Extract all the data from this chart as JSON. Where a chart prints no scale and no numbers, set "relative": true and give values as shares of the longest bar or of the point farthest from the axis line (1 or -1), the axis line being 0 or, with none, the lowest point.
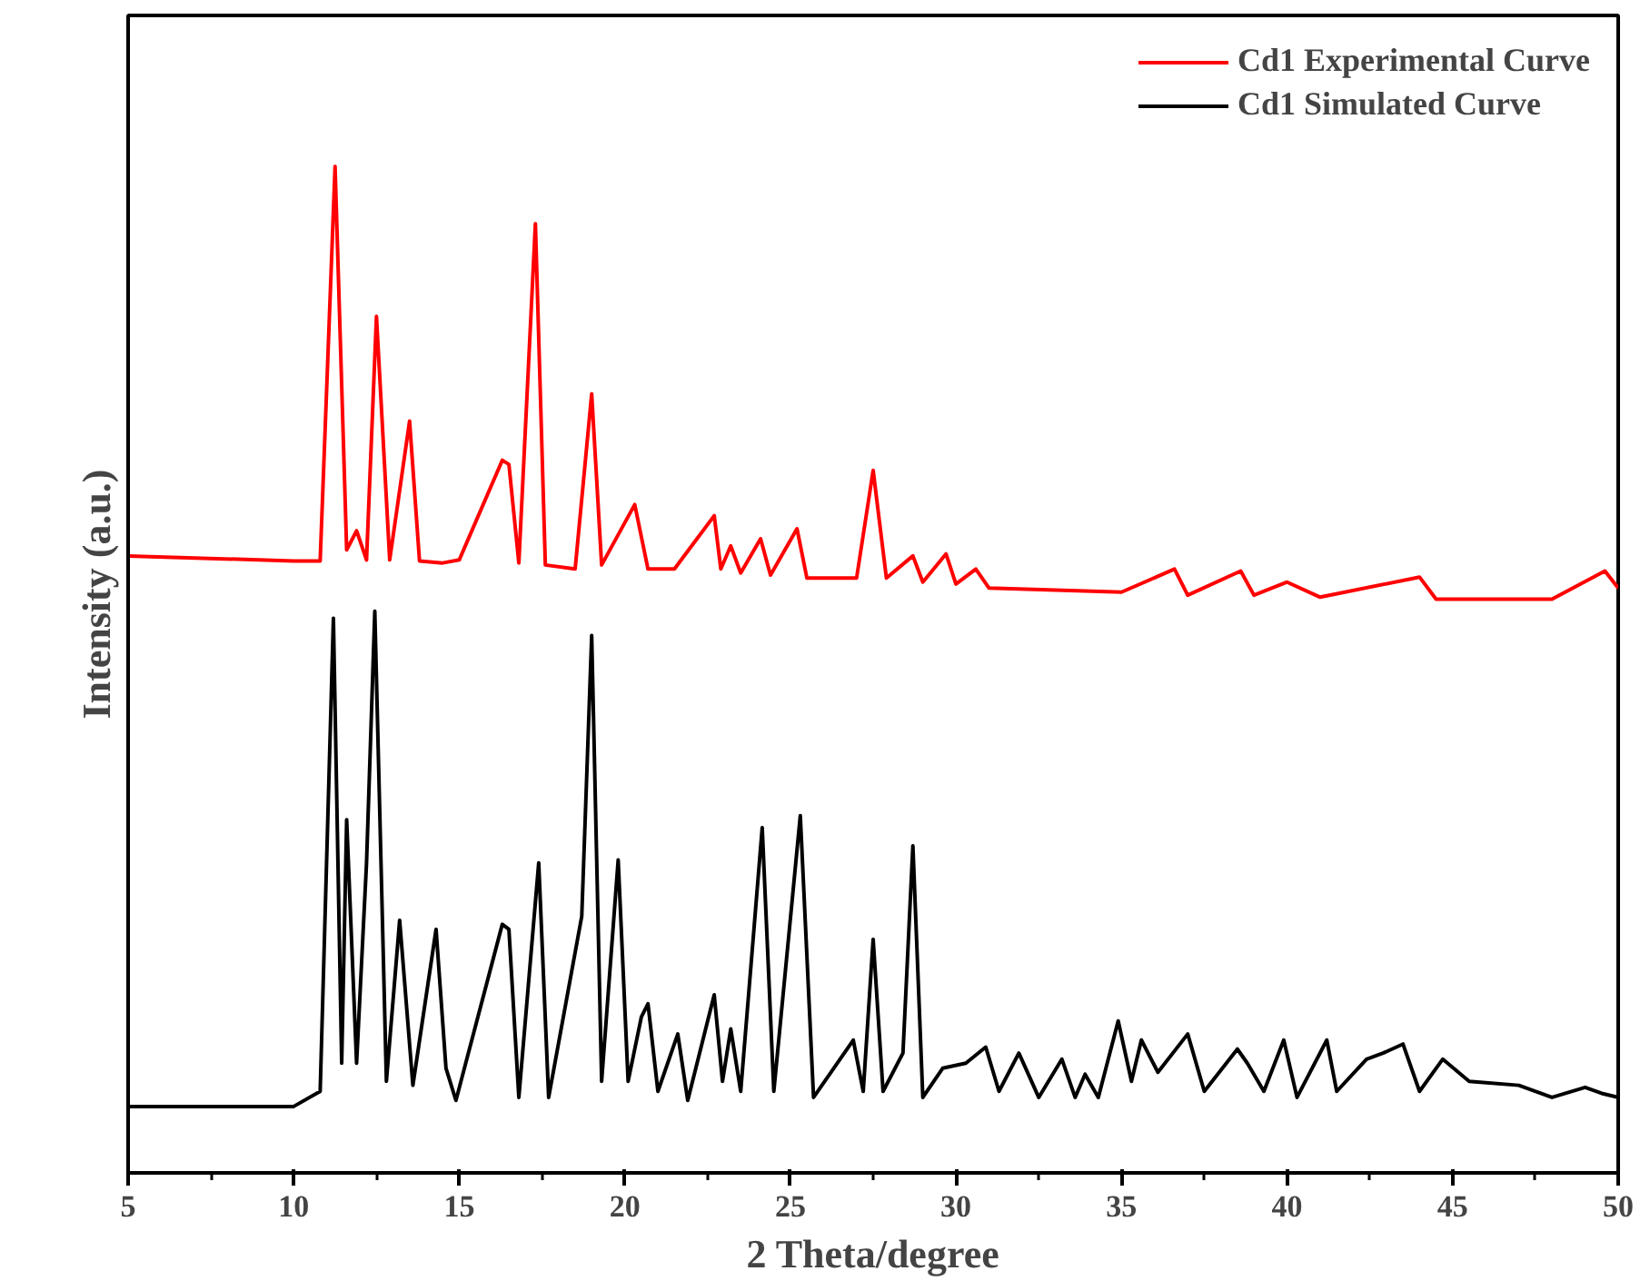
{
  "chart_data": {
    "type": "line",
    "xlabel": "2 Theta/degree",
    "ylabel": "Intensity (a.u.)",
    "relative": true,
    "xlim": [
      5,
      50
    ],
    "xticks": [
      5,
      10,
      15,
      20,
      25,
      30,
      35,
      40,
      45,
      50
    ],
    "tick_labels": "x",
    "grid": false,
    "legend": "top right",
    "line_style": "solid",
    "marker": "none",
    "series": [
      {
        "name": "Cd1 Experimental Curve",
        "color": "#ff0000",
        "x": [
          5,
          10,
          10.8,
          11.25,
          11.6,
          11.9,
          12.2,
          12.5,
          12.9,
          13.5,
          13.8,
          14.5,
          15.0,
          16.3,
          16.5,
          16.8,
          17.3,
          17.6,
          18.5,
          19.0,
          19.3,
          20.3,
          20.7,
          21.5,
          22.7,
          22.9,
          23.2,
          23.5,
          24.1,
          24.4,
          25.2,
          25.5,
          27.0,
          27.5,
          27.9,
          28.7,
          29.0,
          29.7,
          30.0,
          30.6,
          31.0,
          35.0,
          36.6,
          37.0,
          38.6,
          39.0,
          40.0,
          41.0,
          44.0,
          44.5,
          48.0,
          49.6,
          50
        ],
        "values": [
          0.613,
          0.608,
          0.608,
          1.0,
          0.619,
          0.638,
          0.609,
          0.851,
          0.609,
          0.747,
          0.608,
          0.606,
          0.609,
          0.708,
          0.704,
          0.606,
          0.943,
          0.604,
          0.6,
          0.774,
          0.604,
          0.664,
          0.6,
          0.6,
          0.653,
          0.6,
          0.623,
          0.596,
          0.63,
          0.594,
          0.64,
          0.591,
          0.591,
          0.698,
          0.591,
          0.613,
          0.587,
          0.615,
          0.585,
          0.6,
          0.581,
          0.577,
          0.6,
          0.574,
          0.598,
          0.574,
          0.587,
          0.572,
          0.592,
          0.57,
          0.57,
          0.598,
          0.581
        ]
      },
      {
        "name": "Cd1 Simulated Curve",
        "color": "#000000",
        "x": [
          5,
          10,
          10.8,
          11.2,
          11.45,
          11.6,
          11.9,
          12.2,
          12.45,
          12.8,
          13.2,
          13.6,
          14.3,
          14.6,
          14.9,
          16.3,
          16.5,
          16.8,
          17.4,
          17.7,
          18.7,
          19.0,
          19.3,
          19.8,
          20.1,
          20.5,
          20.7,
          21.0,
          21.6,
          21.9,
          22.7,
          22.95,
          23.2,
          23.5,
          24.15,
          24.5,
          25.3,
          25.7,
          26.9,
          27.2,
          27.5,
          27.8,
          28.4,
          28.7,
          29.0,
          29.6,
          30.3,
          30.9,
          31.3,
          31.9,
          32.5,
          33.2,
          33.6,
          33.9,
          34.3,
          34.9,
          35.3,
          35.6,
          36.1,
          37.0,
          37.5,
          38.5,
          38.8,
          39.3,
          39.9,
          40.3,
          41.2,
          41.5,
          42.4,
          42.9,
          43.5,
          44.0,
          44.7,
          45.5,
          47.0,
          48.0,
          49.0,
          49.5,
          50
        ],
        "values": [
          0.066,
          0.066,
          0.081,
          0.551,
          0.109,
          0.351,
          0.109,
          0.308,
          0.558,
          0.091,
          0.251,
          0.087,
          0.242,
          0.104,
          0.072,
          0.247,
          0.242,
          0.075,
          0.308,
          0.075,
          0.255,
          0.534,
          0.091,
          0.311,
          0.091,
          0.155,
          0.168,
          0.081,
          0.138,
          0.072,
          0.177,
          0.091,
          0.143,
          0.081,
          0.343,
          0.081,
          0.355,
          0.075,
          0.132,
          0.081,
          0.232,
          0.081,
          0.119,
          0.325,
          0.075,
          0.104,
          0.109,
          0.125,
          0.081,
          0.119,
          0.075,
          0.113,
          0.075,
          0.098,
          0.075,
          0.151,
          0.091,
          0.132,
          0.1,
          0.138,
          0.081,
          0.123,
          0.109,
          0.081,
          0.132,
          0.075,
          0.132,
          0.081,
          0.113,
          0.119,
          0.128,
          0.081,
          0.113,
          0.091,
          0.087,
          0.075,
          0.085,
          0.079,
          0.075
        ]
      }
    ]
  }
}
